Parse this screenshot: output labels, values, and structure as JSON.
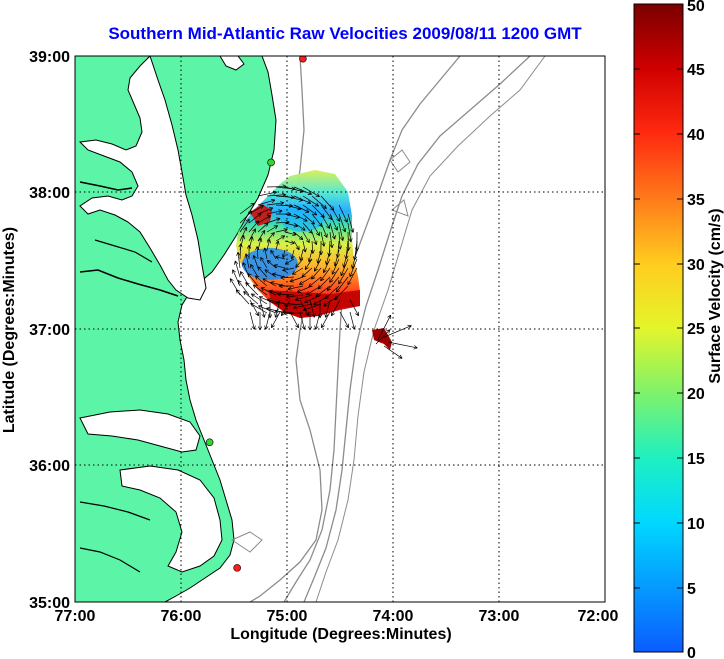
{
  "title": "Southern Mid-Atlantic Raw Velocities 2009/08/11 1200 GMT",
  "xlabel": "Longitude (Degrees:Minutes)",
  "ylabel": "Latitude (Degrees:Minutes)",
  "x_ticks": [
    "77:00",
    "76:00",
    "75:00",
    "74:00",
    "73:00",
    "72:00"
  ],
  "y_ticks": [
    "39:00",
    "38:00",
    "37:00",
    "36:00",
    "35:00"
  ],
  "colorbar": {
    "label": "Surface Velocity (cm/s)",
    "ticks": [
      "0",
      "5",
      "10",
      "15",
      "20",
      "25",
      "30",
      "35",
      "40",
      "45",
      "50"
    ],
    "min": 0,
    "max": 50
  },
  "colors": {
    "land": "#5cf5a8",
    "water": "#ffffff",
    "coast": "#000000",
    "bathymetry": "#8c8c8c",
    "title": "#0000ff",
    "site_green": "#2ed62e",
    "site_red": "#ff1a1a"
  },
  "stations": [
    {
      "status": "red",
      "lon": -74.85,
      "lat": 38.98
    },
    {
      "status": "green",
      "lon": -75.15,
      "lat": 38.22
    },
    {
      "status": "green",
      "lon": -75.73,
      "lat": 36.17
    },
    {
      "status": "red",
      "lon": -75.47,
      "lat": 35.25
    }
  ]
}
